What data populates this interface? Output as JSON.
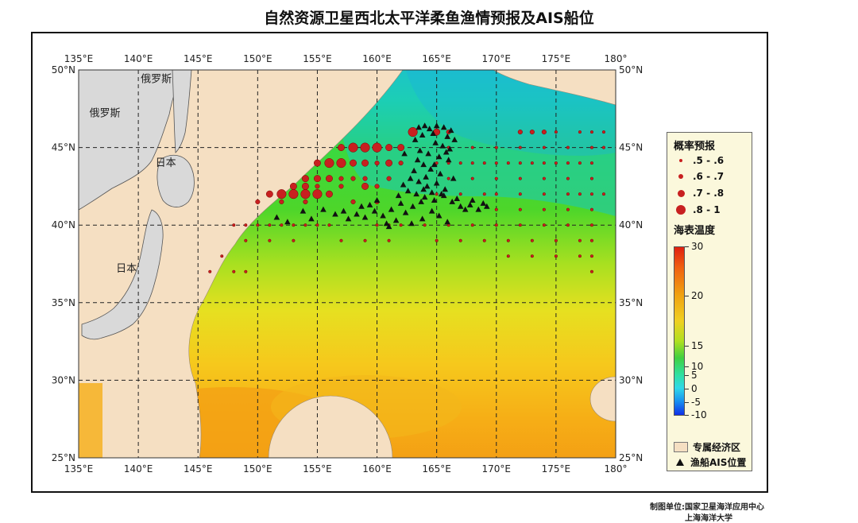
{
  "title": "自然资源卫星西北太平洋柔鱼渔情预报及AIS船位",
  "credits": {
    "line1": "制图单位:国家卫星海洋应用中心",
    "line2": "上海海洋大学"
  },
  "map": {
    "lon_range": [
      135,
      180
    ],
    "lat_range": [
      25,
      50
    ],
    "lon_ticks": [
      "135°E",
      "140°E",
      "145°E",
      "150°E",
      "155°E",
      "160°E",
      "165°E",
      "170°E",
      "175°E",
      "180°"
    ],
    "lat_ticks": [
      "25°N",
      "30°N",
      "35°N",
      "40°N",
      "45°N",
      "50°N"
    ],
    "place_labels": [
      {
        "text": "俄罗斯",
        "lon": 141.5,
        "lat": 49.2
      },
      {
        "text": "俄罗斯",
        "lon": 137.2,
        "lat": 47.0
      },
      {
        "text": "日本",
        "lon": 142.3,
        "lat": 43.8
      },
      {
        "text": "日本",
        "lon": 139.0,
        "lat": 37.0
      }
    ]
  },
  "legend": {
    "probability_title": "概率预报",
    "probability_classes": [
      {
        "label": ".5 - .6"
      },
      {
        "label": ".6 - .7"
      },
      {
        "label": ".7 - .8"
      },
      {
        "label": ".8 - 1"
      }
    ],
    "sst_title": "海表温度",
    "sst_ticks": [
      "30",
      "20",
      "15",
      "10",
      "5",
      "0",
      "-5",
      "-10"
    ],
    "eez_label": "专属经济区",
    "ais_label": "渔船AIS位置"
  },
  "colors": {
    "eez": "#f5dfc2",
    "russia": "#d9d9d9",
    "prob_dot": "#c82020",
    "ais": "#111111"
  },
  "chart_data": {
    "type": "scatter",
    "probability_points": [
      {
        "lon": 163,
        "lat": 46,
        "class": 4
      },
      {
        "lon": 165,
        "lat": 46,
        "class": 3
      },
      {
        "lon": 166,
        "lat": 46,
        "class": 2
      },
      {
        "lon": 157,
        "lat": 45,
        "class": 3
      },
      {
        "lon": 158,
        "lat": 45,
        "class": 4
      },
      {
        "lon": 159,
        "lat": 45,
        "class": 4
      },
      {
        "lon": 160,
        "lat": 45,
        "class": 4
      },
      {
        "lon": 161,
        "lat": 45,
        "class": 3
      },
      {
        "lon": 162,
        "lat": 45,
        "class": 3
      },
      {
        "lon": 155,
        "lat": 44,
        "class": 3
      },
      {
        "lon": 156,
        "lat": 44,
        "class": 4
      },
      {
        "lon": 157,
        "lat": 44,
        "class": 4
      },
      {
        "lon": 158,
        "lat": 44,
        "class": 3
      },
      {
        "lon": 159,
        "lat": 44,
        "class": 3
      },
      {
        "lon": 160,
        "lat": 44,
        "class": 2
      },
      {
        "lon": 161,
        "lat": 44,
        "class": 3
      },
      {
        "lon": 162,
        "lat": 44,
        "class": 2
      },
      {
        "lon": 154,
        "lat": 43,
        "class": 3
      },
      {
        "lon": 155,
        "lat": 43,
        "class": 3
      },
      {
        "lon": 156,
        "lat": 43,
        "class": 3
      },
      {
        "lon": 157,
        "lat": 43,
        "class": 2
      },
      {
        "lon": 158,
        "lat": 43,
        "class": 2
      },
      {
        "lon": 159,
        "lat": 43,
        "class": 2
      },
      {
        "lon": 161,
        "lat": 43,
        "class": 2
      },
      {
        "lon": 153,
        "lat": 42.5,
        "class": 3
      },
      {
        "lon": 154,
        "lat": 42.5,
        "class": 3
      },
      {
        "lon": 155,
        "lat": 42.5,
        "class": 2
      },
      {
        "lon": 157,
        "lat": 42.5,
        "class": 2
      },
      {
        "lon": 159,
        "lat": 42.5,
        "class": 3
      },
      {
        "lon": 160,
        "lat": 42.5,
        "class": 2
      },
      {
        "lon": 151,
        "lat": 42,
        "class": 3
      },
      {
        "lon": 152,
        "lat": 42,
        "class": 4
      },
      {
        "lon": 153,
        "lat": 42,
        "class": 4
      },
      {
        "lon": 154,
        "lat": 42,
        "class": 4
      },
      {
        "lon": 155,
        "lat": 42,
        "class": 4
      },
      {
        "lon": 156,
        "lat": 42,
        "class": 3
      },
      {
        "lon": 150,
        "lat": 41.5,
        "class": 2
      },
      {
        "lon": 152,
        "lat": 41.5,
        "class": 2
      },
      {
        "lon": 154,
        "lat": 41.5,
        "class": 2
      },
      {
        "lon": 158,
        "lat": 41.5,
        "class": 2
      },
      {
        "lon": 160,
        "lat": 41.5,
        "class": 2
      },
      {
        "lon": 172,
        "lat": 46,
        "class": 2
      },
      {
        "lon": 173,
        "lat": 46,
        "class": 2
      },
      {
        "lon": 174,
        "lat": 46,
        "class": 2
      },
      {
        "lon": 175,
        "lat": 46,
        "class": 1
      },
      {
        "lon": 177,
        "lat": 46,
        "class": 1
      },
      {
        "lon": 178,
        "lat": 46,
        "class": 1
      },
      {
        "lon": 179,
        "lat": 46,
        "class": 1
      },
      {
        "lon": 166,
        "lat": 45,
        "class": 1
      },
      {
        "lon": 168,
        "lat": 45,
        "class": 1
      },
      {
        "lon": 170,
        "lat": 45,
        "class": 1
      },
      {
        "lon": 172,
        "lat": 45,
        "class": 1
      },
      {
        "lon": 174,
        "lat": 45,
        "class": 1
      },
      {
        "lon": 176,
        "lat": 45,
        "class": 1
      },
      {
        "lon": 178,
        "lat": 45,
        "class": 1
      },
      {
        "lon": 179,
        "lat": 45,
        "class": 1
      },
      {
        "lon": 165,
        "lat": 44,
        "class": 1
      },
      {
        "lon": 166,
        "lat": 44,
        "class": 1
      },
      {
        "lon": 167,
        "lat": 44,
        "class": 1
      },
      {
        "lon": 168,
        "lat": 44,
        "class": 1
      },
      {
        "lon": 169,
        "lat": 44,
        "class": 1
      },
      {
        "lon": 170,
        "lat": 44,
        "class": 1
      },
      {
        "lon": 171,
        "lat": 44,
        "class": 1
      },
      {
        "lon": 172,
        "lat": 44,
        "class": 1
      },
      {
        "lon": 173,
        "lat": 44,
        "class": 1
      },
      {
        "lon": 174,
        "lat": 44,
        "class": 1
      },
      {
        "lon": 175,
        "lat": 44,
        "class": 1
      },
      {
        "lon": 176,
        "lat": 44,
        "class": 1
      },
      {
        "lon": 177,
        "lat": 44,
        "class": 1
      },
      {
        "lon": 178,
        "lat": 44,
        "class": 1
      },
      {
        "lon": 166,
        "lat": 43,
        "class": 1
      },
      {
        "lon": 168,
        "lat": 43,
        "class": 1
      },
      {
        "lon": 170,
        "lat": 43,
        "class": 1
      },
      {
        "lon": 172,
        "lat": 43,
        "class": 1
      },
      {
        "lon": 174,
        "lat": 43,
        "class": 1
      },
      {
        "lon": 176,
        "lat": 43,
        "class": 1
      },
      {
        "lon": 178,
        "lat": 43,
        "class": 1
      },
      {
        "lon": 165,
        "lat": 42,
        "class": 1
      },
      {
        "lon": 167,
        "lat": 42,
        "class": 1
      },
      {
        "lon": 169,
        "lat": 42,
        "class": 1
      },
      {
        "lon": 170,
        "lat": 42,
        "class": 1
      },
      {
        "lon": 172,
        "lat": 42,
        "class": 1
      },
      {
        "lon": 174,
        "lat": 42,
        "class": 1
      },
      {
        "lon": 176,
        "lat": 42,
        "class": 1
      },
      {
        "lon": 177,
        "lat": 42,
        "class": 1
      },
      {
        "lon": 178,
        "lat": 42,
        "class": 1
      },
      {
        "lon": 179,
        "lat": 42,
        "class": 1
      },
      {
        "lon": 170,
        "lat": 41,
        "class": 1
      },
      {
        "lon": 172,
        "lat": 41,
        "class": 1
      },
      {
        "lon": 174,
        "lat": 41,
        "class": 1
      },
      {
        "lon": 176,
        "lat": 41,
        "class": 1
      },
      {
        "lon": 178,
        "lat": 41,
        "class": 1
      },
      {
        "lon": 148,
        "lat": 40,
        "class": 1
      },
      {
        "lon": 149,
        "lat": 40,
        "class": 1
      },
      {
        "lon": 150,
        "lat": 40,
        "class": 1
      },
      {
        "lon": 151,
        "lat": 40,
        "class": 1
      },
      {
        "lon": 152,
        "lat": 40,
        "class": 1
      },
      {
        "lon": 153,
        "lat": 40,
        "class": 1
      },
      {
        "lon": 154,
        "lat": 40,
        "class": 1
      },
      {
        "lon": 155,
        "lat": 40,
        "class": 1
      },
      {
        "lon": 156,
        "lat": 40,
        "class": 1
      },
      {
        "lon": 160,
        "lat": 40,
        "class": 1
      },
      {
        "lon": 161,
        "lat": 40,
        "class": 1
      },
      {
        "lon": 162,
        "lat": 40,
        "class": 1
      },
      {
        "lon": 164,
        "lat": 40,
        "class": 1
      },
      {
        "lon": 166,
        "lat": 40,
        "class": 1
      },
      {
        "lon": 168,
        "lat": 40,
        "class": 1
      },
      {
        "lon": 170,
        "lat": 40,
        "class": 1
      },
      {
        "lon": 172,
        "lat": 40,
        "class": 1
      },
      {
        "lon": 174,
        "lat": 40,
        "class": 1
      },
      {
        "lon": 176,
        "lat": 40,
        "class": 1
      },
      {
        "lon": 178,
        "lat": 40,
        "class": 1
      },
      {
        "lon": 149,
        "lat": 39,
        "class": 1
      },
      {
        "lon": 151,
        "lat": 39,
        "class": 1
      },
      {
        "lon": 153,
        "lat": 39,
        "class": 1
      },
      {
        "lon": 157,
        "lat": 39,
        "class": 1
      },
      {
        "lon": 159,
        "lat": 39,
        "class": 1
      },
      {
        "lon": 161,
        "lat": 39,
        "class": 1
      },
      {
        "lon": 165,
        "lat": 39,
        "class": 1
      },
      {
        "lon": 167,
        "lat": 39,
        "class": 1
      },
      {
        "lon": 169,
        "lat": 39,
        "class": 1
      },
      {
        "lon": 171,
        "lat": 39,
        "class": 1
      },
      {
        "lon": 173,
        "lat": 39,
        "class": 1
      },
      {
        "lon": 175,
        "lat": 39,
        "class": 1
      },
      {
        "lon": 177,
        "lat": 39,
        "class": 1
      },
      {
        "lon": 178,
        "lat": 39,
        "class": 1
      },
      {
        "lon": 147,
        "lat": 38,
        "class": 1
      },
      {
        "lon": 171,
        "lat": 38,
        "class": 1
      },
      {
        "lon": 173,
        "lat": 38,
        "class": 1
      },
      {
        "lon": 175,
        "lat": 38,
        "class": 1
      },
      {
        "lon": 177,
        "lat": 38,
        "class": 1
      },
      {
        "lon": 178,
        "lat": 38,
        "class": 1
      },
      {
        "lon": 146,
        "lat": 37,
        "class": 1
      },
      {
        "lon": 148,
        "lat": 37,
        "class": 1
      },
      {
        "lon": 149,
        "lat": 37,
        "class": 1
      },
      {
        "lon": 178,
        "lat": 37,
        "class": 1
      }
    ],
    "ais_points": [
      [
        163.5,
        46.3
      ],
      [
        164.0,
        46.4
      ],
      [
        164.4,
        46.2
      ],
      [
        165.0,
        46.4
      ],
      [
        165.6,
        46.3
      ],
      [
        166.2,
        46.1
      ],
      [
        165.9,
        45.7
      ],
      [
        164.7,
        45.9
      ],
      [
        163.8,
        45.8
      ],
      [
        163.2,
        45.5
      ],
      [
        164.9,
        45.3
      ],
      [
        165.5,
        45.1
      ],
      [
        166.1,
        44.9
      ],
      [
        163.6,
        44.8
      ],
      [
        164.3,
        44.6
      ],
      [
        165.2,
        44.4
      ],
      [
        166.0,
        44.2
      ],
      [
        163.9,
        43.9
      ],
      [
        164.5,
        43.6
      ],
      [
        165.3,
        43.3
      ],
      [
        163.1,
        43.5
      ],
      [
        162.8,
        43.0
      ],
      [
        163.5,
        42.8
      ],
      [
        164.2,
        42.5
      ],
      [
        165.0,
        42.7
      ],
      [
        165.7,
        42.3
      ],
      [
        162.6,
        42.2
      ],
      [
        163.3,
        42.0
      ],
      [
        164.0,
        41.8
      ],
      [
        164.8,
        41.6
      ],
      [
        165.6,
        41.9
      ],
      [
        166.3,
        41.5
      ],
      [
        167.0,
        41.2
      ],
      [
        167.8,
        41.3
      ],
      [
        168.5,
        41.0
      ],
      [
        169.2,
        41.2
      ],
      [
        166.7,
        41.7
      ],
      [
        168.0,
        41.6
      ],
      [
        162.0,
        41.4
      ],
      [
        161.2,
        41.0
      ],
      [
        160.5,
        40.6
      ],
      [
        159.8,
        40.9
      ],
      [
        159.0,
        40.5
      ],
      [
        158.3,
        40.7
      ],
      [
        157.6,
        40.4
      ],
      [
        157.2,
        40.9
      ],
      [
        160.0,
        41.6
      ],
      [
        161.6,
        40.3
      ],
      [
        162.4,
        40.8
      ],
      [
        163.0,
        41.2
      ],
      [
        164.6,
        40.9
      ],
      [
        165.2,
        40.6
      ],
      [
        163.8,
        40.4
      ],
      [
        162.9,
        40.1
      ],
      [
        161.0,
        39.9
      ],
      [
        165.9,
        40.2
      ],
      [
        163.4,
        44.2
      ],
      [
        164.8,
        43.9
      ],
      [
        166.4,
        43.0
      ],
      [
        165.8,
        44.7
      ],
      [
        166.5,
        45.5
      ],
      [
        162.3,
        44.6
      ],
      [
        163.9,
        42.3
      ],
      [
        164.6,
        42.1
      ],
      [
        163.7,
        41.5
      ],
      [
        162.2,
        42.6
      ],
      [
        161.8,
        41.9
      ],
      [
        159.4,
        41.3
      ],
      [
        158.7,
        41.2
      ],
      [
        160.8,
        40.1
      ],
      [
        164.1,
        43.1
      ],
      [
        165.4,
        42.0
      ],
      [
        167.4,
        41.0
      ],
      [
        168.9,
        41.4
      ],
      [
        155.5,
        41.0
      ],
      [
        154.5,
        40.4
      ],
      [
        153.8,
        40.9
      ],
      [
        156.5,
        40.7
      ],
      [
        152.5,
        40.2
      ],
      [
        151.6,
        40.5
      ]
    ]
  }
}
